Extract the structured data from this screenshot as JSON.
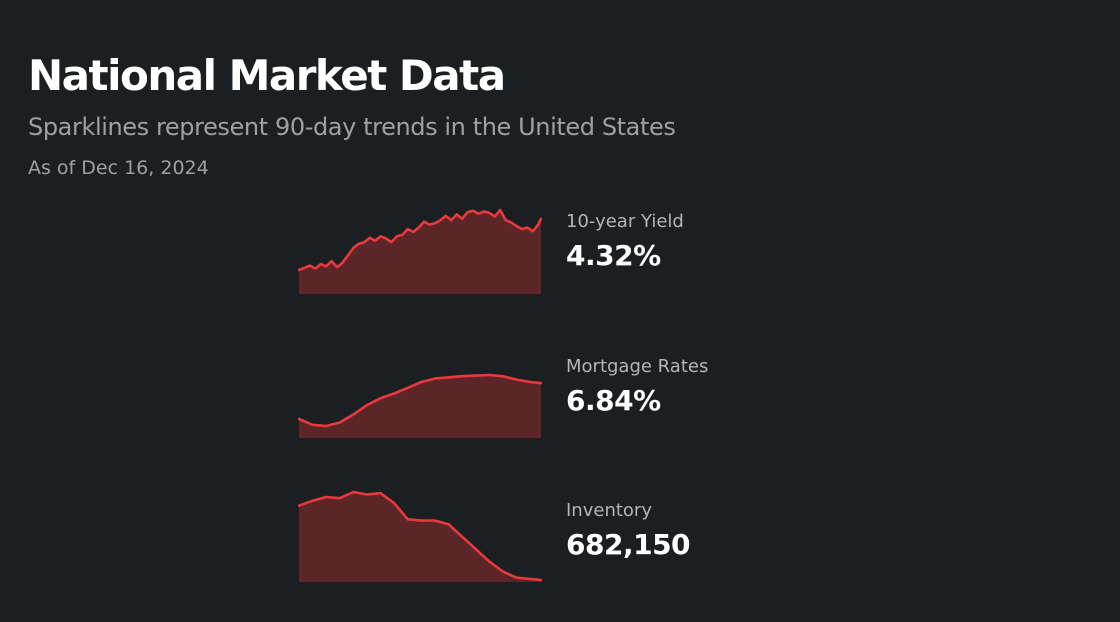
{
  "header": {
    "title": "National Market Data",
    "subtitle": "Sparklines represent 90-day trends in the United States",
    "as_of": "As of Dec 16, 2024"
  },
  "colors": {
    "background": "#1c1f21",
    "line": "#e8393d",
    "fill": "#5c2628",
    "title": "#ffffff",
    "muted_text": "#9ea1a4"
  },
  "metrics": [
    {
      "label": "10-year Yield",
      "value": "4.32%"
    },
    {
      "label": "Mortgage Rates",
      "value": "6.84%"
    },
    {
      "label": "Inventory",
      "value": "682,150"
    }
  ],
  "chart_data": [
    {
      "type": "area",
      "title": "10-year Yield",
      "x_unit": "day",
      "x": [
        1,
        3,
        5,
        7,
        9,
        11,
        13,
        15,
        17,
        19,
        21,
        23,
        25,
        27,
        29,
        31,
        33,
        35,
        37,
        39,
        41,
        43,
        45,
        47,
        49,
        51,
        53,
        55,
        57,
        59,
        61,
        63,
        65,
        67,
        69,
        71,
        73,
        75,
        77,
        79,
        81,
        83,
        85,
        87,
        89,
        90
      ],
      "values": [
        3.62,
        3.65,
        3.68,
        3.64,
        3.7,
        3.67,
        3.74,
        3.66,
        3.72,
        3.82,
        3.92,
        3.98,
        4.0,
        4.06,
        4.02,
        4.08,
        4.05,
        4.0,
        4.08,
        4.1,
        4.18,
        4.14,
        4.2,
        4.28,
        4.24,
        4.26,
        4.3,
        4.36,
        4.3,
        4.38,
        4.32,
        4.41,
        4.43,
        4.39,
        4.42,
        4.4,
        4.35,
        4.44,
        4.3,
        4.27,
        4.22,
        4.18,
        4.2,
        4.15,
        4.24,
        4.32
      ]
    },
    {
      "type": "area",
      "title": "Mortgage Rates",
      "x_unit": "day",
      "x": [
        1,
        6,
        11,
        16,
        21,
        26,
        31,
        36,
        41,
        46,
        51,
        56,
        61,
        66,
        71,
        76,
        81,
        86,
        90
      ],
      "values": [
        6.22,
        6.12,
        6.1,
        6.16,
        6.3,
        6.46,
        6.58,
        6.66,
        6.76,
        6.86,
        6.92,
        6.94,
        6.96,
        6.97,
        6.98,
        6.96,
        6.9,
        6.86,
        6.84
      ]
    },
    {
      "type": "area",
      "title": "Inventory",
      "x_unit": "day",
      "x": [
        1,
        6,
        11,
        16,
        21,
        26,
        31,
        36,
        41,
        46,
        51,
        56,
        61,
        66,
        71,
        76,
        81,
        86,
        90
      ],
      "values": [
        742000,
        746000,
        749000,
        748000,
        753000,
        751000,
        752000,
        744000,
        731000,
        730000,
        730000,
        727000,
        717000,
        707000,
        697000,
        689000,
        684000,
        683000,
        682150
      ]
    }
  ]
}
